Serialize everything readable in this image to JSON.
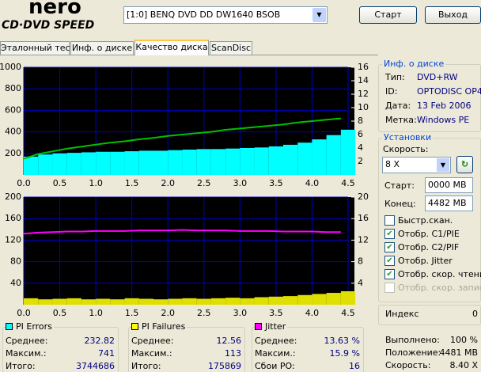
{
  "header": {
    "logo_top": "nero",
    "logo_bottom": "CD·DVD SPEED",
    "drive": "[1:0]  BENQ DVD DD DW1640 BSOB",
    "start": "Старт",
    "exit": "Выход"
  },
  "tabs": {
    "items": [
      "Эталонный тест",
      "Инф. о диске",
      "Качество диска",
      "ScanDisc"
    ],
    "active": 2
  },
  "disc_info": {
    "title": "Инф. о диске",
    "rows": [
      [
        "Тип:",
        "DVD+RW"
      ],
      [
        "ID:",
        "OPTODISC OP4"
      ],
      [
        "Дата:",
        "13 Feb 2006"
      ],
      [
        "Метка:",
        "Windows PE"
      ]
    ]
  },
  "settings": {
    "title": "Установки",
    "speed_label": "Скорость:",
    "speed": "8 X",
    "start_label": "Старт:",
    "start": "0000 MB",
    "end_label": "Конец:",
    "end": "4482 MB",
    "checks": [
      {
        "label": "Быстр.скан.",
        "checked": false,
        "enabled": true
      },
      {
        "label": "Отобр. C1/PIE",
        "checked": true,
        "enabled": true
      },
      {
        "label": "Отобр. C2/PIF",
        "checked": true,
        "enabled": true
      },
      {
        "label": "Отобр. Jitter",
        "checked": true,
        "enabled": true
      },
      {
        "label": "Отобр. скор. чтения",
        "checked": true,
        "enabled": true
      },
      {
        "label": "Отобр. скор. записи",
        "checked": false,
        "enabled": false
      }
    ]
  },
  "index": {
    "label": "Индекс",
    "value": "0"
  },
  "progress": [
    [
      "Выполнено:",
      "100 %"
    ],
    [
      "Положение:",
      "4481 MB"
    ],
    [
      "Скорость:",
      "8.40 X"
    ]
  ],
  "stats": [
    {
      "title": "PI Errors",
      "color": "#00ffff",
      "rows": [
        [
          "Среднее:",
          "232.82"
        ],
        [
          "Максим.:",
          "741"
        ],
        [
          "Итого:",
          "3744686"
        ]
      ]
    },
    {
      "title": "PI Failures",
      "color": "#ffff00",
      "rows": [
        [
          "Среднее:",
          "12.56"
        ],
        [
          "Максим.:",
          "113"
        ],
        [
          "Итого:",
          "175869"
        ]
      ]
    },
    {
      "title": "Jitter",
      "color": "#ff00ff",
      "rows": [
        [
          "Среднее:",
          "13.63 %"
        ],
        [
          "Максим.:",
          "15.9 %"
        ],
        [
          "Сбои PO:",
          "16"
        ]
      ]
    }
  ],
  "charts": [
    {
      "xlim": [
        0,
        4.5
      ],
      "xticks": [
        {
          "value": 0,
          "label": "0.0"
        },
        0.5,
        {
          "value": 1,
          "label": "1.0"
        },
        1.5,
        {
          "value": 2,
          "label": "2.0"
        },
        2.5,
        {
          "value": 3,
          "label": "3.0"
        },
        3.5,
        {
          "value": 4,
          "label": "4.0"
        },
        4.5
      ],
      "ylim": [
        0,
        1000
      ],
      "yticks": [
        200,
        400,
        600,
        800,
        1000
      ],
      "y2lim": [
        0,
        16
      ],
      "y2ticks": [
        2,
        4,
        6,
        8,
        10,
        12,
        14,
        16
      ],
      "x": [
        0,
        0.2,
        0.4,
        0.6,
        0.8,
        1,
        1.2,
        1.4,
        1.6,
        1.8,
        2,
        2.2,
        2.4,
        2.6,
        2.8,
        3,
        3.2,
        3.4,
        3.6,
        3.8,
        4,
        4.2,
        4.4
      ],
      "series": [
        {
          "style": "bars",
          "color": "#00ffff",
          "values": [
            170,
            190,
            200,
            205,
            210,
            215,
            215,
            220,
            225,
            225,
            230,
            235,
            240,
            240,
            245,
            250,
            255,
            265,
            280,
            300,
            330,
            370,
            420
          ]
        },
        {
          "style": "line",
          "color": "#00c000",
          "axis": "y2",
          "values": [
            2.4,
            3.1,
            3.5,
            3.9,
            4.2,
            4.5,
            4.8,
            5,
            5.3,
            5.5,
            5.8,
            6,
            6.2,
            6.4,
            6.7,
            6.9,
            7.1,
            7.3,
            7.5,
            7.8,
            8,
            8.2,
            8.4
          ]
        }
      ]
    },
    {
      "xlim": [
        0,
        4.5
      ],
      "xticks": [
        {
          "value": 0,
          "label": "0.0"
        },
        0.5,
        {
          "value": 1,
          "label": "1.0"
        },
        1.5,
        {
          "value": 2,
          "label": "2.0"
        },
        2.5,
        {
          "value": 3,
          "label": "3.0"
        },
        3.5,
        {
          "value": 4,
          "label": "4.0"
        },
        4.5
      ],
      "ylim": [
        0,
        200
      ],
      "yticks": [
        40,
        80,
        120,
        160,
        200
      ],
      "y2lim": [
        0,
        20
      ],
      "y2ticks": [
        4,
        8,
        12,
        16,
        20
      ],
      "x": [
        0,
        0.2,
        0.4,
        0.6,
        0.8,
        1,
        1.2,
        1.4,
        1.6,
        1.8,
        2,
        2.2,
        2.4,
        2.6,
        2.8,
        3,
        3.2,
        3.4,
        3.6,
        3.8,
        4,
        4.2,
        4.4
      ],
      "series": [
        {
          "style": "bars",
          "color": "#e0e000",
          "values": [
            12,
            10,
            11,
            12,
            10,
            11,
            10,
            12,
            11,
            10,
            11,
            12,
            11,
            12,
            13,
            12,
            14,
            15,
            16,
            18,
            20,
            22,
            25
          ]
        },
        {
          "style": "line",
          "color": "#ff00ff",
          "axis": "y2",
          "values": [
            13.2,
            13.4,
            13.5,
            13.6,
            13.6,
            13.7,
            13.7,
            13.7,
            13.8,
            13.8,
            13.8,
            13.9,
            13.8,
            13.8,
            13.8,
            13.7,
            13.7,
            13.7,
            13.6,
            13.6,
            13.6,
            13.5,
            13.5
          ]
        }
      ]
    }
  ]
}
